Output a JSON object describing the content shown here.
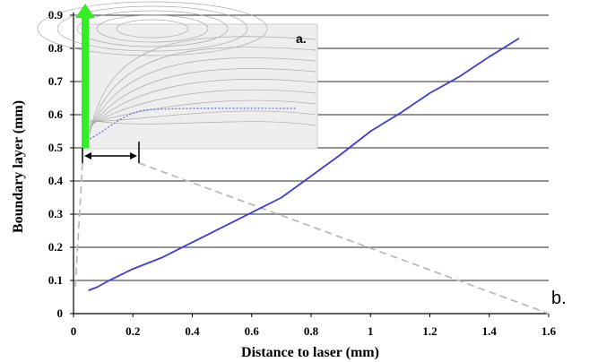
{
  "chart_data": {
    "type": "line",
    "title": "",
    "xlabel": "Distance to laser (mm)",
    "ylabel": "Boundary layer (mm)",
    "xlim": [
      0,
      1.6
    ],
    "ylim": [
      0,
      0.9
    ],
    "x_ticks": [
      "0",
      "0.2",
      "0.4",
      "0.6",
      "0.8",
      "1",
      "1.2",
      "1.4",
      "1.6"
    ],
    "y_ticks": [
      "0",
      "0.1",
      "0.2",
      "0.3",
      "0.4",
      "0.5",
      "0.6",
      "0.7",
      "0.8",
      "0.9"
    ],
    "grid": "horizontal",
    "series": [
      {
        "color": "#3d3ddb",
        "x": [
          0.05,
          0.08,
          0.12,
          0.2,
          0.3,
          0.4,
          0.5,
          0.6,
          0.7,
          0.8,
          0.9,
          1.0,
          1.1,
          1.2,
          1.3,
          1.4,
          1.5
        ],
        "y": [
          0.07,
          0.08,
          0.1,
          0.135,
          0.17,
          0.215,
          0.26,
          0.305,
          0.35,
          0.415,
          0.48,
          0.55,
          0.605,
          0.665,
          0.715,
          0.775,
          0.83
        ]
      }
    ],
    "annotations": {
      "panel_a": "a.",
      "panel_b": "b."
    }
  },
  "colors": {
    "line": "#3d3ddb",
    "grid": "#555555",
    "arrow": "#33ee22",
    "dashed": "#bbbbbb",
    "inset_bg": "#eeeeee"
  }
}
